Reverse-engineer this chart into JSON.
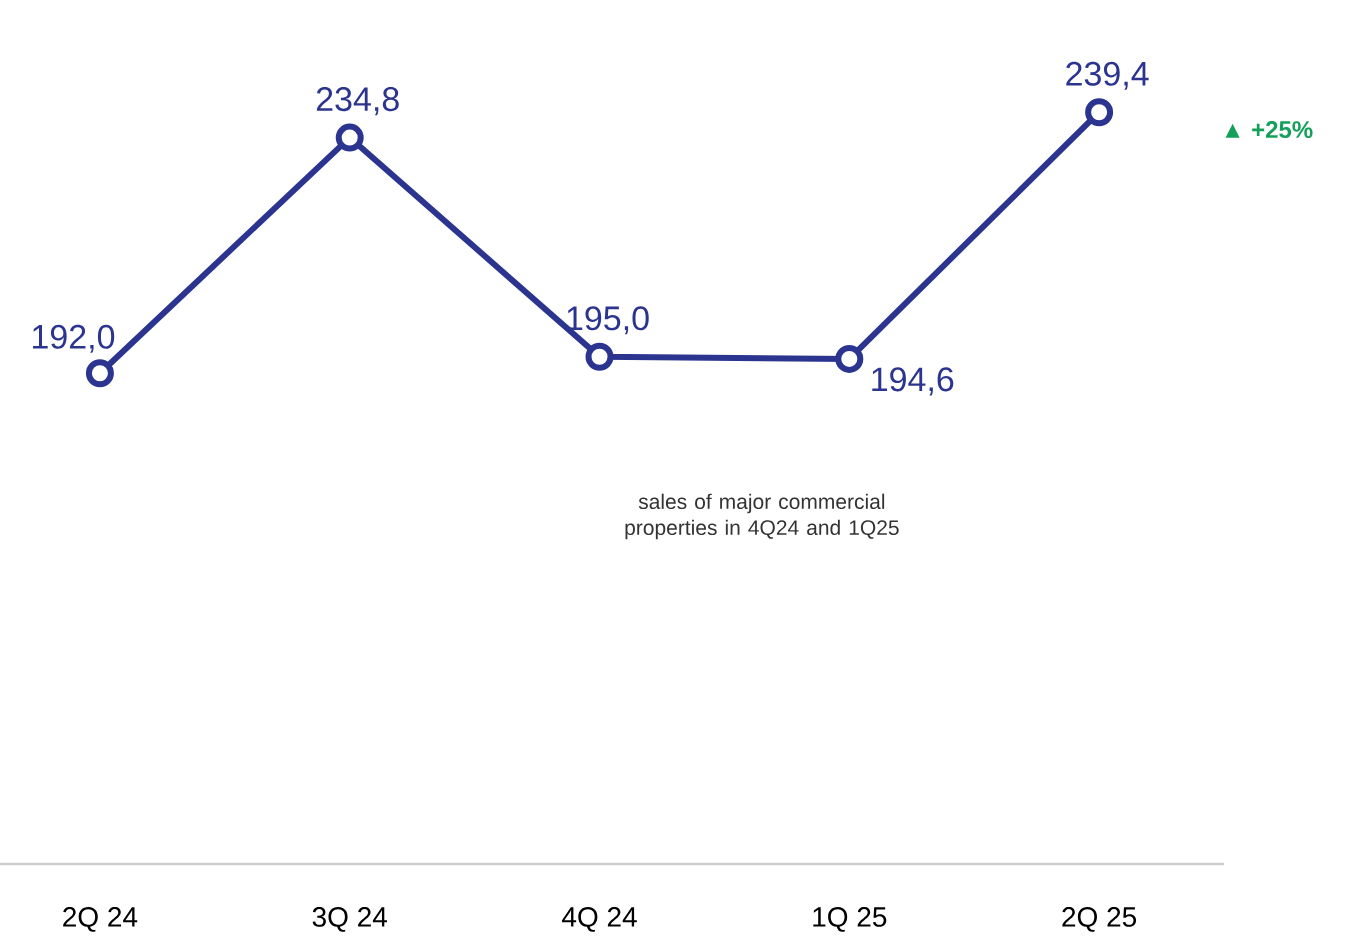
{
  "chart_data": {
    "type": "line",
    "categories": [
      "2Q 24",
      "3Q 24",
      "4Q 24",
      "1Q 25",
      "2Q 25"
    ],
    "series": [
      {
        "color": "#2b3590",
        "values": [
          192.0,
          234.8,
          195.0,
          194.6,
          239.4
        ],
        "value_labels": [
          "192,0",
          "234,8",
          "195,0",
          "194,6",
          "239,4"
        ]
      }
    ],
    "marker": "circle",
    "line_style": "solid",
    "annotations": [
      "▲ +25%",
      "sales of major commercial properties in 4Q24 and 1Q25"
    ]
  }
}
